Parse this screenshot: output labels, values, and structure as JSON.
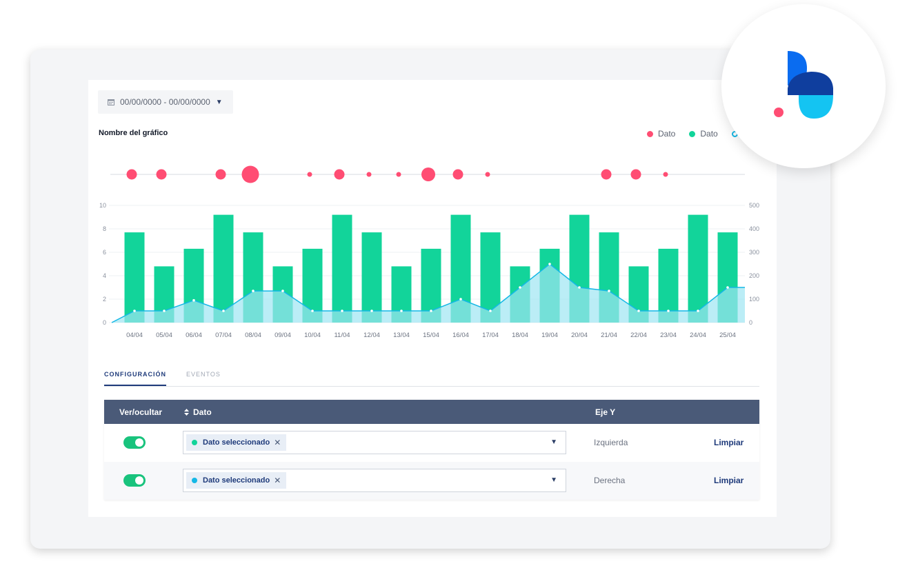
{
  "date_picker": {
    "label": "00/00/0000 - 00/00/0000"
  },
  "chart_title": "Nombre del gráfico",
  "legend": [
    {
      "label": "Dato",
      "color": "#ff4d73",
      "style": "filled"
    },
    {
      "label": "Dato",
      "color": "#12d49a",
      "style": "filled"
    },
    {
      "label": "",
      "color": "#14b8e6",
      "style": "ring"
    }
  ],
  "colors": {
    "event_dot": "#ff4d73",
    "bar": "#12d49a",
    "line": "#14b8e6",
    "area": "#9ee6f2",
    "header": "#4a5a78",
    "accent": "#1e3a7a",
    "toggle_on": "#19c37d"
  },
  "chart_data": {
    "type": "bar",
    "title": "Nombre del gráfico",
    "categories": [
      "04/04",
      "05/04",
      "06/04",
      "07/04",
      "08/04",
      "09/04",
      "10/04",
      "11/04",
      "12/04",
      "13/04",
      "15/04",
      "16/04",
      "17/04",
      "18/04",
      "19/04",
      "20/04",
      "21/04",
      "22/04",
      "23/04",
      "24/04",
      "25/04"
    ],
    "series": [
      {
        "name": "Dato",
        "type": "bar",
        "axis": "left",
        "values": [
          7.7,
          4.8,
          6.3,
          9.2,
          7.7,
          4.8,
          6.3,
          9.2,
          7.7,
          4.8,
          6.3,
          9.2,
          7.7,
          4.8,
          6.3,
          9.2,
          7.7,
          4.8,
          6.3,
          9.2,
          7.7
        ]
      },
      {
        "name": "Dato",
        "type": "area",
        "axis": "right",
        "values": [
          50,
          50,
          95,
          50,
          135,
          135,
          50,
          50,
          50,
          50,
          50,
          100,
          50,
          150,
          250,
          150,
          135,
          50,
          50,
          50,
          150
        ]
      }
    ],
    "events": {
      "name": "Dato",
      "categories": [
        "04/04",
        "05/04",
        "07/04",
        "08/04",
        "10/04",
        "11/04",
        "12/04",
        "13/04",
        "15/04",
        "16/04",
        "17/04",
        "21/04",
        "22/04",
        "23/04"
      ],
      "sizes": [
        3,
        3,
        3,
        5,
        1,
        3,
        1,
        1,
        4,
        3,
        1,
        3,
        3,
        1
      ]
    },
    "y_left": {
      "ticks": [
        "0",
        "2",
        "4",
        "6",
        "8",
        "10"
      ],
      "range": [
        0,
        10
      ]
    },
    "y_right": {
      "ticks": [
        "0",
        "100",
        "200",
        "300",
        "400",
        "500"
      ],
      "range": [
        0,
        500
      ]
    }
  },
  "tabs": [
    {
      "label": "CONFIGURACIÓN",
      "active": true
    },
    {
      "label": "EVENTOS",
      "active": false
    }
  ],
  "table": {
    "headers": {
      "toggle": "Ver/ocultar",
      "data": "Dato",
      "axis": "Eje Y"
    },
    "sort_icon": "sort-icon",
    "rows": [
      {
        "chip_label": "Dato seleccionado",
        "chip_color": "#12d49a",
        "axis": "Izquierda",
        "action": "Limpiar"
      },
      {
        "chip_label": "Dato seleccionado",
        "chip_color": "#14b8e6",
        "axis": "Derecha",
        "action": "Limpiar"
      }
    ],
    "remove_glyph": "✕",
    "caret_glyph": "▼"
  }
}
